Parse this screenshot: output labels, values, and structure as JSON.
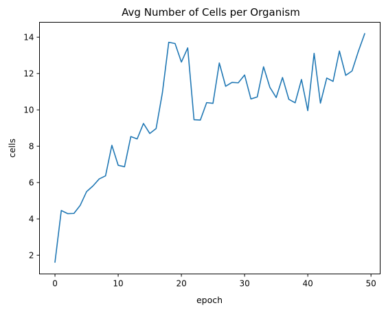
{
  "chart_data": {
    "type": "line",
    "title": "Avg Number of Cells per Organism",
    "xlabel": "epoch",
    "ylabel": "cells",
    "xlim": [
      -2.45,
      51.45
    ],
    "ylim": [
      0.97,
      14.82
    ],
    "xticks": [
      0,
      10,
      20,
      30,
      40,
      50
    ],
    "yticks": [
      2,
      4,
      6,
      8,
      10,
      12,
      14
    ],
    "xtick_labels": [
      "0",
      "10",
      "20",
      "30",
      "40",
      "50"
    ],
    "ytick_labels": [
      "2",
      "4",
      "6",
      "8",
      "10",
      "12",
      "14"
    ],
    "grid": false,
    "line_color": "#1f77b4",
    "series": [
      {
        "x": [
          0,
          1,
          2,
          3,
          4,
          5,
          6,
          7,
          8,
          9,
          10,
          11,
          12,
          13,
          14,
          15,
          16,
          17,
          18,
          19,
          20,
          21,
          22,
          23,
          24,
          25,
          26,
          27,
          28,
          29,
          30,
          31,
          32,
          33,
          34,
          35,
          36,
          37,
          38,
          39,
          40,
          41,
          42,
          43,
          44,
          45,
          46,
          47,
          48,
          49
        ],
        "values": [
          1.62,
          4.46,
          4.29,
          4.3,
          4.75,
          5.5,
          5.81,
          6.2,
          6.37,
          8.05,
          6.95,
          6.87,
          8.53,
          8.4,
          9.25,
          8.7,
          8.97,
          10.95,
          13.72,
          13.65,
          12.63,
          13.41,
          9.46,
          9.44,
          10.4,
          10.36,
          12.58,
          11.3,
          11.51,
          11.49,
          11.92,
          10.6,
          10.71,
          12.37,
          11.24,
          10.68,
          11.78,
          10.58,
          10.39,
          11.67,
          9.96,
          13.11,
          10.37,
          11.75,
          11.57,
          13.24,
          11.9,
          12.14,
          13.22,
          14.19
        ]
      }
    ]
  }
}
